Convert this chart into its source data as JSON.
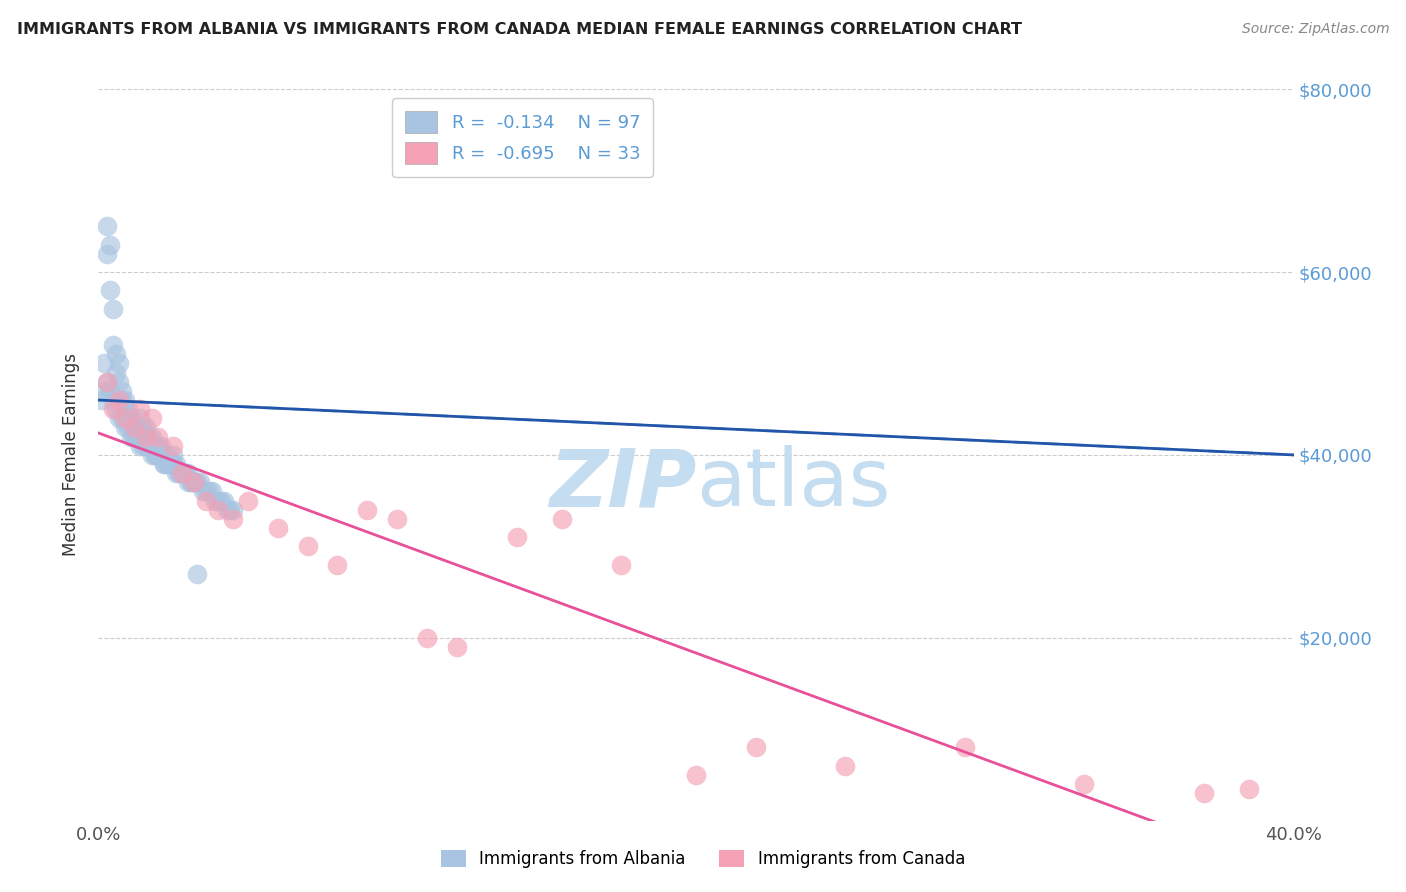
{
  "title": "IMMIGRANTS FROM ALBANIA VS IMMIGRANTS FROM CANADA MEDIAN FEMALE EARNINGS CORRELATION CHART",
  "source": "Source: ZipAtlas.com",
  "ylabel": "Median Female Earnings",
  "xlim": [
    0.0,
    0.4
  ],
  "ylim": [
    0,
    80000
  ],
  "albania_color": "#a8c4e0",
  "canada_color": "#f4a0b5",
  "albania_line_color": "#2255aa",
  "canada_line_color": "#e8509a",
  "dashed_line_color": "#90bce0",
  "r_albania": -0.134,
  "n_albania": 97,
  "r_canada": -0.695,
  "n_canada": 33,
  "watermark_zip": "ZIP",
  "watermark_atlas": "atlas",
  "watermark_color_zip": "#c5ddf0",
  "watermark_color_atlas": "#c5ddf0",
  "albania_x": [
    0.002,
    0.003,
    0.003,
    0.004,
    0.004,
    0.005,
    0.005,
    0.006,
    0.006,
    0.007,
    0.007,
    0.008,
    0.008,
    0.009,
    0.009,
    0.01,
    0.01,
    0.011,
    0.011,
    0.012,
    0.012,
    0.013,
    0.013,
    0.014,
    0.015,
    0.015,
    0.016,
    0.016,
    0.017,
    0.017,
    0.018,
    0.018,
    0.019,
    0.019,
    0.02,
    0.02,
    0.021,
    0.021,
    0.022,
    0.022,
    0.023,
    0.024,
    0.025,
    0.025,
    0.026,
    0.027,
    0.028,
    0.029,
    0.03,
    0.031,
    0.032,
    0.033,
    0.034,
    0.035,
    0.036,
    0.037,
    0.038,
    0.039,
    0.04,
    0.041,
    0.042,
    0.043,
    0.044,
    0.045,
    0.001,
    0.002,
    0.003,
    0.004,
    0.005,
    0.006,
    0.007,
    0.008,
    0.009,
    0.01,
    0.011,
    0.012,
    0.013,
    0.014,
    0.015,
    0.016,
    0.017,
    0.018,
    0.019,
    0.02,
    0.021,
    0.022,
    0.023,
    0.024,
    0.025,
    0.026,
    0.027,
    0.028,
    0.029,
    0.03,
    0.031,
    0.032,
    0.033
  ],
  "albania_y": [
    47000,
    65000,
    62000,
    63000,
    58000,
    56000,
    52000,
    51000,
    49000,
    50000,
    48000,
    47000,
    46000,
    46000,
    45000,
    45000,
    44000,
    44000,
    43000,
    43000,
    42000,
    43000,
    42000,
    44000,
    43000,
    42000,
    43000,
    42000,
    42000,
    41000,
    42000,
    41000,
    41000,
    40000,
    41000,
    40000,
    41000,
    40000,
    40000,
    39000,
    40000,
    39000,
    40000,
    39000,
    39000,
    38000,
    38000,
    38000,
    38000,
    37000,
    37000,
    37000,
    37000,
    36000,
    36000,
    36000,
    36000,
    35000,
    35000,
    35000,
    35000,
    34000,
    34000,
    34000,
    46000,
    50000,
    48000,
    47000,
    46000,
    45000,
    44000,
    44000,
    43000,
    43000,
    42000,
    42000,
    42000,
    41000,
    41000,
    41000,
    41000,
    40000,
    40000,
    40000,
    40000,
    39000,
    39000,
    39000,
    39000,
    38000,
    38000,
    38000,
    38000,
    37000,
    37000,
    37000,
    27000
  ],
  "canada_x": [
    0.003,
    0.005,
    0.007,
    0.009,
    0.012,
    0.014,
    0.016,
    0.018,
    0.02,
    0.025,
    0.028,
    0.032,
    0.036,
    0.04,
    0.045,
    0.05,
    0.06,
    0.07,
    0.08,
    0.09,
    0.1,
    0.11,
    0.12,
    0.14,
    0.155,
    0.175,
    0.2,
    0.22,
    0.25,
    0.29,
    0.33,
    0.37,
    0.385
  ],
  "canada_y": [
    48000,
    45000,
    46000,
    44000,
    43000,
    45000,
    42000,
    44000,
    42000,
    41000,
    38000,
    37000,
    35000,
    34000,
    33000,
    35000,
    32000,
    30000,
    28000,
    34000,
    33000,
    20000,
    19000,
    31000,
    33000,
    28000,
    5000,
    8000,
    6000,
    8000,
    4000,
    3000,
    3500
  ]
}
